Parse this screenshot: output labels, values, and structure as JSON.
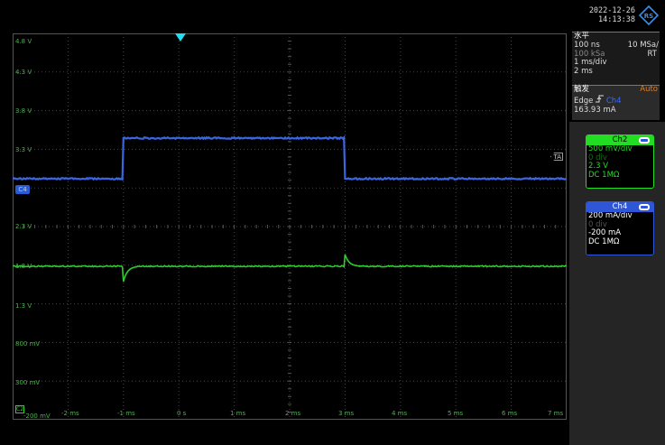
{
  "datetime": {
    "date": "2022-12-26",
    "time": "14:13:38"
  },
  "horizontal": {
    "title": "水平",
    "time_base": "100 ns",
    "sample_rate": "10 MSa/",
    "record_length": "100 kSa",
    "mode": "RT",
    "time_per_div": "1 ms/div",
    "position": "2 ms"
  },
  "trigger": {
    "title": "触发",
    "mode": "Auto",
    "type": "Edge",
    "source": "Ch4",
    "level": "163.93 mA"
  },
  "channels": [
    {
      "name": "Ch2",
      "scale": "500 mV/div",
      "offset": "0 div",
      "position": "2.3 V",
      "coupling": "DC 1MΩ",
      "color": "#22dd22"
    },
    {
      "name": "Ch4",
      "scale": "200 mA/div",
      "offset": "0 div",
      "position": "-200 mA",
      "coupling": "DC 1MΩ",
      "color": "#3a6bff"
    }
  ],
  "markers": {
    "ta": "TA",
    "ch4_marker": "C4",
    "ch2_marker": "C2"
  },
  "y_axis_labels": [
    "4.8 V",
    "4.3 V",
    "3.8 V",
    "3.3 V",
    "2.3 V",
    "1.8 V",
    "1.3 V",
    "800 mV",
    "300 mV",
    "-200 mV"
  ],
  "x_axis_labels": [
    "-2 ms",
    "-1 ms",
    "0 s",
    "1 ms",
    "2 ms",
    "3 ms",
    "4 ms",
    "5 ms",
    "6 ms",
    "7 ms"
  ],
  "colors": {
    "ch2_trace": "#2ecc2e",
    "ch4_trace": "#3a66e0",
    "trigger_marker": "#1ee0f0",
    "grid": "#444444"
  }
}
